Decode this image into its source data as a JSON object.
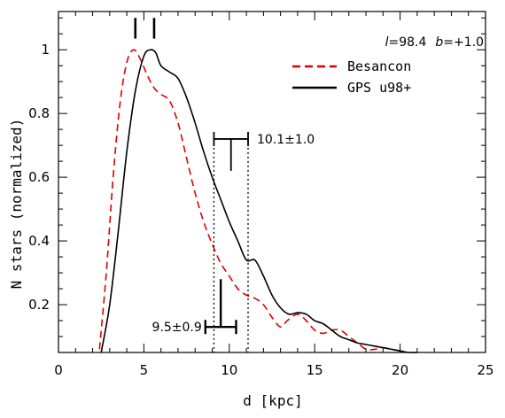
{
  "chart_data": {
    "type": "line",
    "xlabel": "d [kpc]",
    "ylabel": "N stars (normalized)",
    "xlim": [
      0,
      25
    ],
    "ylim": [
      0.05,
      1.12
    ],
    "x_ticks": [
      "0",
      "5",
      "10",
      "15",
      "20",
      "25"
    ],
    "y_ticks": [
      "0.2",
      "0.4",
      "0.6",
      "0.8",
      "1"
    ],
    "grid": false,
    "legend_position": "top-right",
    "coordinates_label": {
      "l_symbol": "l",
      "l_value": "=98.4",
      "b_symbol": "b",
      "b_value": "=+1.0"
    },
    "series": [
      {
        "name": "Besancon",
        "color": "#e00000",
        "style": "dashed",
        "x": [
          2.4,
          2.8,
          3.2,
          3.6,
          4.0,
          4.4,
          4.8,
          5.2,
          5.6,
          6.0,
          6.5,
          7.0,
          7.5,
          8.0,
          8.5,
          9.0,
          9.5,
          10.0,
          10.5,
          11.0,
          11.5,
          12.0,
          12.5,
          13.0,
          13.4,
          14.0,
          14.5,
          15.0,
          15.5,
          16.0,
          16.5,
          17.0,
          17.5,
          18.0,
          18.5,
          19.0,
          19.5,
          20.0
        ],
        "y": [
          0.06,
          0.3,
          0.6,
          0.83,
          0.96,
          1.0,
          0.97,
          0.92,
          0.88,
          0.86,
          0.84,
          0.77,
          0.66,
          0.55,
          0.46,
          0.39,
          0.33,
          0.29,
          0.25,
          0.23,
          0.22,
          0.2,
          0.16,
          0.13,
          0.15,
          0.17,
          0.15,
          0.12,
          0.11,
          0.12,
          0.12,
          0.1,
          0.08,
          0.06,
          0.06,
          0.065,
          0.06,
          0.055
        ]
      },
      {
        "name": "GPS u98+",
        "color": "#000000",
        "style": "solid",
        "x": [
          2.5,
          3.0,
          3.5,
          4.0,
          4.5,
          5.0,
          5.4,
          5.7,
          6.0,
          6.5,
          7.0,
          7.5,
          8.0,
          8.5,
          9.0,
          9.5,
          10.0,
          10.5,
          11.0,
          11.5,
          12.0,
          12.5,
          13.0,
          13.5,
          14.0,
          14.5,
          15.0,
          15.5,
          16.0,
          16.5,
          17.0,
          17.5,
          18.0,
          18.5,
          19.0,
          19.5,
          20.0,
          20.5,
          21.0
        ],
        "y": [
          0.05,
          0.2,
          0.43,
          0.68,
          0.87,
          0.98,
          1.0,
          0.99,
          0.95,
          0.93,
          0.91,
          0.85,
          0.77,
          0.68,
          0.6,
          0.53,
          0.46,
          0.4,
          0.34,
          0.34,
          0.29,
          0.23,
          0.19,
          0.17,
          0.175,
          0.17,
          0.15,
          0.14,
          0.12,
          0.1,
          0.09,
          0.08,
          0.075,
          0.07,
          0.065,
          0.06,
          0.055,
          0.05,
          0.05
        ]
      }
    ],
    "peak_markers": [
      4.5,
      5.6
    ],
    "annotations": [
      {
        "label": "10.1±1.0",
        "center": 10.1,
        "error": 1.0,
        "bar_y": 0.72,
        "line_y_top": 0.72,
        "line_y_bottom": 0.62
      },
      {
        "label": "9.5±0.9",
        "center": 9.5,
        "error": 0.9,
        "bar_y": 0.13,
        "line_y_top": 0.28,
        "line_y_bottom": 0.13
      }
    ],
    "vertical_dotted_lines": [
      9.1,
      11.1
    ]
  }
}
